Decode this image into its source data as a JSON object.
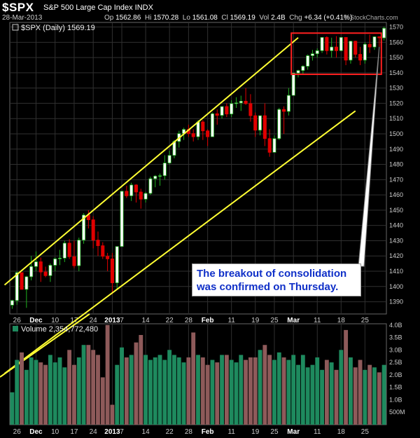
{
  "header": {
    "symbol": "$SPX",
    "name": "S&P 500 Large Cap Index  INDX",
    "date": "28-Mar-2013",
    "op_label": "Op",
    "op": "1562.86",
    "hi_label": "Hi",
    "hi": "1570.28",
    "lo_label": "Lo",
    "lo": "1561.08",
    "cl_label": "Cl",
    "cl": "1569.19",
    "vol_label": "Vol",
    "vol": "2.4B",
    "chg_label": "Chg",
    "chg": "+6.34 (+0.41%)",
    "watermark": "© StockCharts.com"
  },
  "callout": {
    "line1": "The breakout of consolidation",
    "line2": "was confirmed on Thursday."
  },
  "colors": {
    "up": "#2f6a2f",
    "up_fill": "#ffffff",
    "up_stroke": "#20b020",
    "down": "#e00000",
    "channel": "#ffff33",
    "box": "#ff2020",
    "grid": "#303030",
    "vol_up": "#1e8a5e",
    "vol_down": "#8e5a5a"
  },
  "chart_data": [
    {
      "type": "candlestick",
      "legend": "$SPX (Daily) 1569.19",
      "ylim": [
        1382,
        1573
      ],
      "y_ticks": [
        1390,
        1400,
        1410,
        1420,
        1430,
        1440,
        1450,
        1460,
        1470,
        1480,
        1490,
        1500,
        1510,
        1520,
        1530,
        1540,
        1550,
        1560,
        1570
      ],
      "x_tick_labels": [
        "26",
        "Dec",
        "10",
        "17",
        "24",
        "2013",
        "7",
        "14",
        "22",
        "28",
        "Feb",
        "11",
        "19",
        "25",
        "Mar",
        "11",
        "18",
        "25"
      ],
      "x_tick_index": [
        1,
        5,
        9,
        13,
        17,
        21,
        23,
        28,
        33,
        37,
        41,
        46,
        51,
        55,
        59,
        64,
        69,
        74
      ],
      "ohlc": [
        [
          1387.8,
          1391.3,
          1385.4,
          1390.8
        ],
        [
          1390.8,
          1409.9,
          1388.0,
          1409.1
        ],
        [
          1409.1,
          1409.1,
          1398.1,
          1398.1
        ],
        [
          1398.1,
          1407.0,
          1386.0,
          1406.4
        ],
        [
          1406.4,
          1420.0,
          1404.0,
          1413.1
        ],
        [
          1413.1,
          1423.0,
          1410.0,
          1416.2
        ],
        [
          1416.2,
          1419.0,
          1403.0,
          1409.5
        ],
        [
          1409.5,
          1413.0,
          1406.0,
          1407.1
        ],
        [
          1407.1,
          1415.0,
          1403.0,
          1413.9
        ],
        [
          1413.9,
          1419.0,
          1410.0,
          1418.1
        ],
        [
          1418.1,
          1424.0,
          1414.0,
          1418.6
        ],
        [
          1418.6,
          1430.0,
          1416.0,
          1428.4
        ],
        [
          1428.4,
          1431.0,
          1418.0,
          1419.5
        ],
        [
          1419.5,
          1430.0,
          1412.0,
          1413.6
        ],
        [
          1413.6,
          1432.0,
          1410.0,
          1430.4
        ],
        [
          1430.4,
          1448.0,
          1428.0,
          1446.8
        ],
        [
          1446.8,
          1450.0,
          1438.0,
          1443.7
        ],
        [
          1443.7,
          1446.0,
          1425.0,
          1430.4
        ],
        [
          1430.4,
          1436.0,
          1420.0,
          1426.7
        ],
        [
          1426.7,
          1429.0,
          1418.0,
          1419.8
        ],
        [
          1419.8,
          1422.0,
          1410.0,
          1418.1
        ],
        [
          1418.1,
          1422.0,
          1395.0,
          1402.4
        ],
        [
          1402.4,
          1426.0,
          1398.0,
          1426.2
        ],
        [
          1426.2,
          1462.0,
          1426.0,
          1462.4
        ],
        [
          1462.4,
          1466.0,
          1458.0,
          1459.4
        ],
        [
          1459.4,
          1468.0,
          1456.0,
          1466.5
        ],
        [
          1466.5,
          1467.0,
          1455.0,
          1461.9
        ],
        [
          1461.9,
          1464.0,
          1451.0,
          1457.2
        ],
        [
          1457.2,
          1462.0,
          1455.0,
          1461.0
        ],
        [
          1461.0,
          1472.0,
          1460.0,
          1470.6
        ],
        [
          1470.6,
          1473.0,
          1465.0,
          1472.3
        ],
        [
          1472.3,
          1474.0,
          1466.0,
          1472.6
        ],
        [
          1472.6,
          1486.0,
          1470.0,
          1480.9
        ],
        [
          1480.9,
          1489.0,
          1480.0,
          1485.9
        ],
        [
          1485.9,
          1496.0,
          1484.0,
          1495.0
        ],
        [
          1495.0,
          1502.0,
          1491.0,
          1500.2
        ],
        [
          1500.2,
          1504.0,
          1496.0,
          1502.9
        ],
        [
          1502.9,
          1506.0,
          1498.0,
          1500.2
        ],
        [
          1500.2,
          1503.0,
          1495.0,
          1498.1
        ],
        [
          1498.1,
          1509.0,
          1496.0,
          1507.8
        ],
        [
          1507.8,
          1509.0,
          1496.0,
          1501.96
        ],
        [
          1501.96,
          1503.0,
          1492.0,
          1498.1
        ],
        [
          1498.1,
          1514.0,
          1498.0,
          1513.2
        ],
        [
          1513.2,
          1516.0,
          1506.0,
          1512.1
        ],
        [
          1512.1,
          1517.0,
          1510.0,
          1517.9
        ],
        [
          1517.9,
          1520.0,
          1511.0,
          1513.0
        ],
        [
          1513.0,
          1522.0,
          1511.0,
          1519.8
        ],
        [
          1519.8,
          1524.0,
          1517.0,
          1520.3
        ],
        [
          1520.3,
          1525.0,
          1515.0,
          1521.4
        ],
        [
          1521.4,
          1530.0,
          1519.0,
          1519.8
        ],
        [
          1519.8,
          1526.0,
          1508.0,
          1511.9
        ],
        [
          1511.9,
          1514.0,
          1498.0,
          1502.4
        ],
        [
          1502.4,
          1512.0,
          1499.0,
          1511.9
        ],
        [
          1511.9,
          1520.0,
          1492.0,
          1496.9
        ],
        [
          1496.9,
          1503.0,
          1485.0,
          1487.9
        ],
        [
          1487.9,
          1499.0,
          1488.0,
          1496.9
        ],
        [
          1496.9,
          1517.0,
          1496.0,
          1515.99
        ],
        [
          1515.99,
          1518.0,
          1500.0,
          1514.7
        ],
        [
          1514.7,
          1530.0,
          1512.0,
          1525.2
        ],
        [
          1525.2,
          1539.0,
          1525.0,
          1539.8
        ],
        [
          1539.8,
          1542.0,
          1537.0,
          1541.5
        ],
        [
          1541.5,
          1545.0,
          1539.0,
          1544.3
        ],
        [
          1544.3,
          1552.0,
          1542.0,
          1551.2
        ],
        [
          1551.2,
          1555.0,
          1548.0,
          1552.5
        ],
        [
          1552.5,
          1556.0,
          1550.0,
          1554.5
        ],
        [
          1554.5,
          1563.0,
          1553.0,
          1563.2
        ],
        [
          1563.2,
          1564.0,
          1552.0,
          1554.5
        ],
        [
          1554.5,
          1563.0,
          1550.0,
          1556.9
        ],
        [
          1556.9,
          1564.0,
          1550.0,
          1554.5
        ],
        [
          1554.5,
          1563.0,
          1554.0,
          1563.2
        ],
        [
          1563.2,
          1563.0,
          1545.0,
          1548.3
        ],
        [
          1548.3,
          1561.0,
          1546.0,
          1560.7
        ],
        [
          1560.7,
          1561.0,
          1550.0,
          1552.1
        ],
        [
          1552.1,
          1557.0,
          1545.0,
          1548.3
        ],
        [
          1548.3,
          1560.0,
          1546.0,
          1558.7
        ],
        [
          1558.7,
          1565.0,
          1553.0,
          1556.9
        ],
        [
          1556.9,
          1564.0,
          1555.0,
          1563.6
        ],
        [
          1563.6,
          1564.0,
          1557.0,
          1562.9
        ],
        [
          1562.86,
          1570.28,
          1561.08,
          1569.19
        ]
      ]
    },
    {
      "type": "bar",
      "legend": "Volume 2,354,772,480",
      "ylim": [
        0,
        4.05
      ],
      "y_ticks": [
        0.5,
        1.0,
        1.5,
        2.0,
        2.5,
        3.0,
        3.5,
        4.0
      ],
      "y_tick_labels": [
        "500M",
        "1.0B",
        "1.5B",
        "2.0B",
        "2.5B",
        "3.0B",
        "3.5B",
        "4.0B"
      ],
      "values": [
        1.3,
        2.6,
        2.9,
        2.2,
        2.7,
        2.6,
        2.5,
        2.4,
        2.8,
        2.5,
        2.7,
        2.3,
        3.0,
        2.4,
        2.7,
        3.2,
        3.2,
        3.0,
        2.8,
        1.9,
        4.0,
        0.8,
        2.4,
        3.1,
        2.7,
        2.8,
        3.3,
        3.6,
        2.8,
        2.6,
        2.7,
        2.8,
        2.6,
        3.0,
        2.8,
        2.7,
        2.5,
        2.7,
        3.7,
        2.8,
        2.7,
        2.4,
        2.6,
        2.5,
        2.8,
        2.8,
        2.6,
        2.5,
        2.8,
        2.6,
        2.7,
        2.7,
        3.0,
        3.2,
        2.8,
        2.6,
        2.9,
        2.7,
        2.6,
        2.8,
        2.4,
        2.8,
        2.3,
        2.4,
        2.7,
        2.2,
        2.6,
        2.5,
        2.2,
        3.0,
        3.8,
        2.7,
        2.3,
        2.6,
        2.2,
        2.4,
        2.3,
        2.1,
        2.4
      ]
    }
  ]
}
